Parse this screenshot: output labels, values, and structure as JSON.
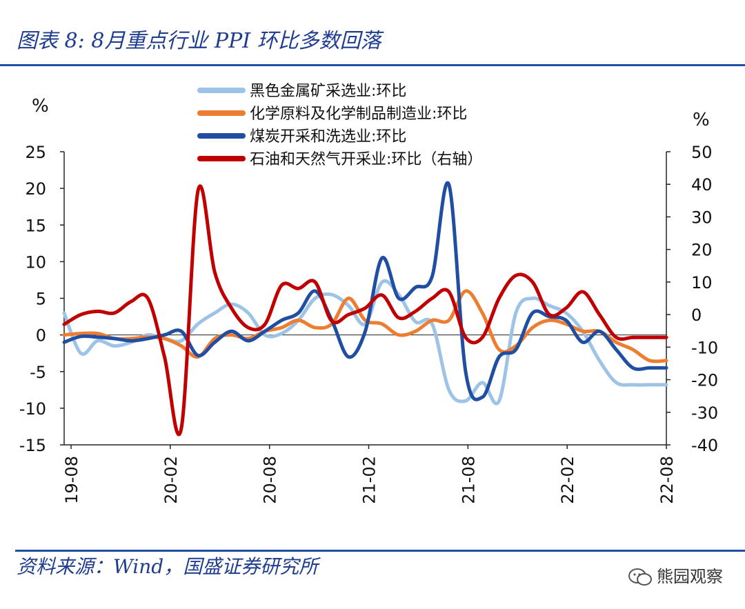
{
  "title": "图表 8:  8月重点行业 PPI 环比多数回落",
  "source": "资料来源：Wind，国盛证券研究所",
  "watermark": "熊园观察",
  "chart_data": {
    "type": "line",
    "left_unit": "%",
    "right_unit": "%",
    "ylim": [
      -15,
      25
    ],
    "y2lim": [
      -40,
      50
    ],
    "yticks": [
      25,
      20,
      15,
      10,
      5,
      0,
      -5,
      -10,
      -15
    ],
    "y2ticks": [
      50,
      40,
      30,
      20,
      10,
      0,
      -10,
      -20,
      -30,
      -40
    ],
    "xtick_labels": [
      "19-08",
      "20-02",
      "20-08",
      "21-02",
      "21-08",
      "22-02",
      "22-08"
    ],
    "x_start": "19-08",
    "x_end": "22-08",
    "series": [
      {
        "name": "黑色金属矿采选业:环比",
        "color": "#9dc3e6",
        "axis": "left",
        "values": [
          3,
          -2.5,
          -0.8,
          -1.5,
          -1,
          0,
          -0.5,
          -0.8,
          1.5,
          3,
          4.2,
          3,
          0,
          0.2,
          2,
          5,
          5.5,
          4,
          1.5,
          7.2,
          5.5,
          1.8,
          1.5,
          -7.5,
          -9,
          -6.5,
          -9,
          3,
          5,
          4,
          3,
          0.5,
          -3.5,
          -6.5,
          -6.8,
          -6.8,
          -6.8
        ]
      },
      {
        "name": "化学原料及化学制品制造业:环比",
        "color": "#ed7d31",
        "axis": "left",
        "values": [
          0,
          0.2,
          0.2,
          -0.5,
          -0.5,
          -0.3,
          -0.5,
          -1.5,
          -3,
          -0.5,
          0,
          -0.5,
          0.5,
          1,
          2,
          1,
          1.5,
          5,
          2,
          1.5,
          0,
          0.5,
          2,
          2,
          6,
          3,
          -2,
          -1.5,
          1,
          2,
          1.5,
          0.5,
          0.5,
          -1,
          -2,
          -3.5,
          -3.5
        ]
      },
      {
        "name": "煤炭开采和洗选业:环比",
        "color": "#1f4ea3",
        "axis": "left",
        "values": [
          -1,
          -0.2,
          -0.3,
          -0.5,
          -0.8,
          -0.5,
          0,
          0.5,
          -2.8,
          -1,
          0.5,
          -0.8,
          0.5,
          2,
          3,
          6,
          2,
          -3,
          0.5,
          10.5,
          5,
          6.5,
          8,
          20.5,
          -5,
          -8.5,
          -3,
          -2,
          3,
          2.5,
          2,
          -1,
          0.5,
          -2,
          -4.5,
          -4.5,
          -4.5
        ]
      },
      {
        "name": "石油和天然气开采业:环比（右轴）",
        "color": "#c00000",
        "axis": "right",
        "values": [
          -3,
          0,
          1,
          0.5,
          4,
          5,
          -13,
          -35,
          38,
          13,
          2,
          -4,
          -3,
          9,
          8,
          10,
          -2,
          0,
          2,
          6,
          -1,
          1,
          5,
          7,
          -7,
          -7,
          5,
          12,
          10,
          0,
          2,
          7,
          0,
          -7,
          -7,
          -7,
          -7
        ]
      }
    ]
  }
}
